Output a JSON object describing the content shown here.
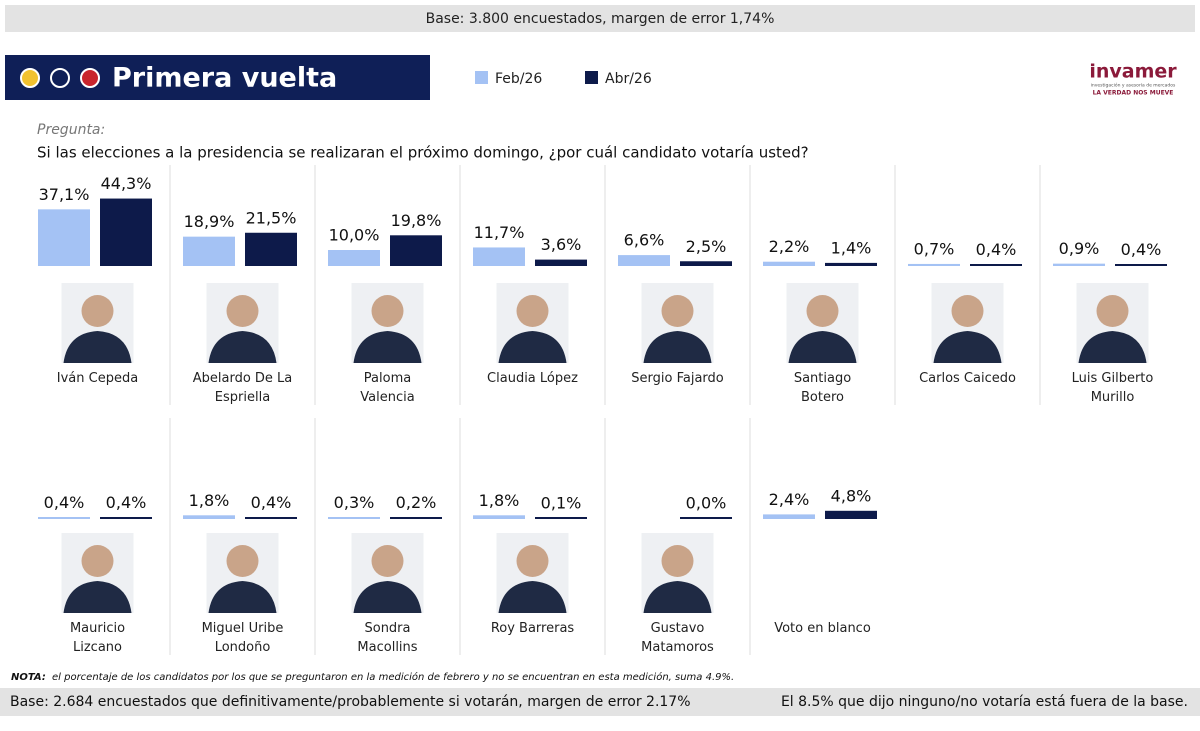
{
  "top_note": "Base: 3.800 encuestados, margen de error 1,74%",
  "header_title": "Primera vuelta",
  "logo": {
    "name": "invamer",
    "small": "investigación y asesoría de mercados",
    "tagline": "LA VERDAD NOS MUEVE"
  },
  "question_label": "Pregunta:",
  "question": "Si las elecciones a la presidencia se realizaran el próximo domingo, ¿por cuál candidato votaría usted?",
  "chart_data": {
    "type": "bar",
    "categories": [
      "Iván Cepeda",
      "Abelardo De La Espriella",
      "Paloma Valencia",
      "Claudia López",
      "Sergio Fajardo",
      "Santiago Botero",
      "Carlos Caicedo",
      "Luis Gilberto Murillo",
      "Mauricio Lizcano",
      "Miguel Uribe Londoño",
      "Sondra Macollins",
      "Roy Barreras",
      "Gustavo Matamoros",
      "Voto en blanco"
    ],
    "series": [
      {
        "name": "Feb/26",
        "color": "#a4c2f4",
        "values": [
          37.1,
          18.9,
          10.0,
          11.7,
          6.6,
          2.2,
          0.7,
          0.9,
          0.4,
          1.8,
          0.3,
          1.8,
          null,
          2.4
        ],
        "value_labels": [
          "37,1%",
          "18,9%",
          "10,0%",
          "11,7%",
          "6,6%",
          "2,2%",
          "0,7%",
          "0,9%",
          "0,4%",
          "1,8%",
          "0,3%",
          "1,8%",
          null,
          "2,4%"
        ]
      },
      {
        "name": "Abr/26",
        "color": "#0d1a4a",
        "values": [
          44.3,
          21.5,
          19.8,
          3.6,
          2.5,
          1.4,
          0.4,
          0.4,
          0.4,
          0.4,
          0.2,
          0.1,
          0.0,
          4.8
        ],
        "value_labels": [
          "44,3%",
          "21,5%",
          "19,8%",
          "3,6%",
          "2,5%",
          "1,4%",
          "0,4%",
          "0,4%",
          "0,4%",
          "0,4%",
          "0,2%",
          "0,1%",
          "0,0%",
          "4,8%"
        ]
      }
    ]
  },
  "note_label": "NOTA:",
  "note": "el porcentaje de los candidatos por los que se preguntaron en la medición de febrero y no se encuentran en esta medición, suma 4.9%.",
  "footer_left": "Base: 2.684 encuestados que definitivamente/probablemente si votarán, margen de error 2.17%",
  "footer_right": "El 8.5% que dijo ninguno/no votaría está fuera de la base."
}
